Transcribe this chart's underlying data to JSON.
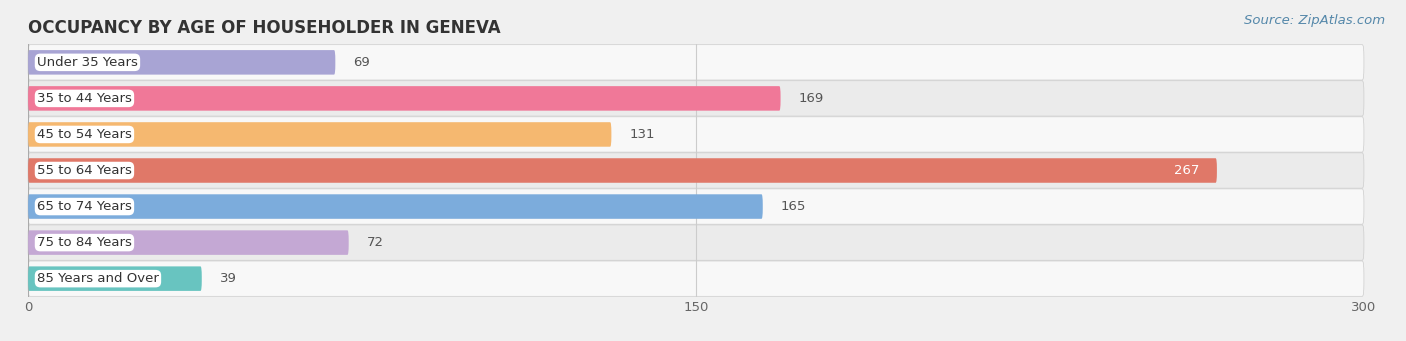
{
  "title": "OCCUPANCY BY AGE OF HOUSEHOLDER IN GENEVA",
  "source": "Source: ZipAtlas.com",
  "categories": [
    "Under 35 Years",
    "35 to 44 Years",
    "45 to 54 Years",
    "55 to 64 Years",
    "65 to 74 Years",
    "75 to 84 Years",
    "85 Years and Over"
  ],
  "values": [
    69,
    169,
    131,
    267,
    165,
    72,
    39
  ],
  "bar_colors": [
    "#a8a4d4",
    "#f07898",
    "#f5b870",
    "#e07868",
    "#7cacdc",
    "#c4a8d4",
    "#68c4c0"
  ],
  "background_color": "#f0f0f0",
  "row_bg_light": "#f8f8f8",
  "row_bg_dark": "#ebebeb",
  "xlim": [
    0,
    300
  ],
  "xticks": [
    0,
    150,
    300
  ],
  "title_fontsize": 12,
  "bar_label_fontsize": 9.5,
  "cat_label_fontsize": 9.5,
  "source_fontsize": 9.5
}
